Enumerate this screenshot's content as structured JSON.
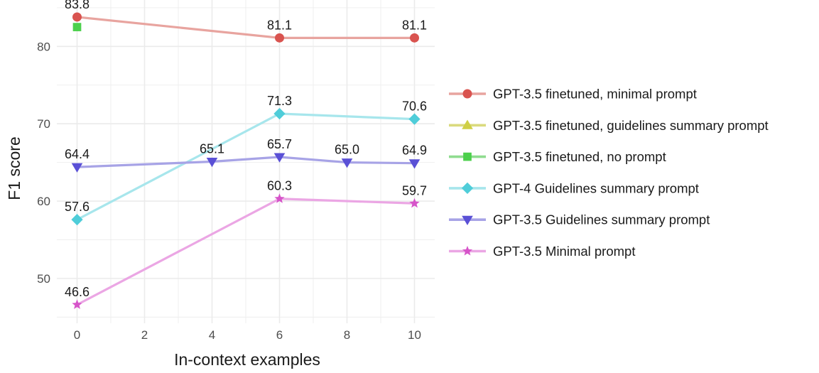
{
  "chart_data": {
    "type": "line",
    "title": "",
    "xlabel": "In-context examples",
    "ylabel": "F1 score",
    "xlim": [
      -0.6,
      10.6
    ],
    "ylim": [
      44.2,
      86
    ],
    "x_ticks": [
      0,
      2,
      4,
      6,
      8,
      10
    ],
    "y_ticks": [
      50,
      60,
      70,
      80
    ],
    "grid": true,
    "legend_position": "right",
    "series": [
      {
        "name": "GPT-3.5 finetuned, minimal prompt",
        "color": "#e8a49f",
        "marker_color": "#d9534f",
        "marker": "circle",
        "points": [
          {
            "x": 0,
            "y": 83.8,
            "label": "83.8"
          },
          {
            "x": 6,
            "y": 81.1,
            "label": "81.1"
          },
          {
            "x": 10,
            "y": 81.1,
            "label": "81.1"
          }
        ]
      },
      {
        "name": "GPT-3.5 finetuned, guidelines summary prompt",
        "color": "#dada7e",
        "marker_color": "#cfcf45",
        "marker": "triangle",
        "points": []
      },
      {
        "name": "GPT-3.5 finetuned, no prompt",
        "color": "#8fdc8f",
        "marker_color": "#4cd04c",
        "marker": "square",
        "points": [
          {
            "x": 0,
            "y": 82.5,
            "label": ""
          }
        ]
      },
      {
        "name": "GPT-4 Guidelines summary prompt",
        "color": "#a7e6ec",
        "marker_color": "#4fcdd9",
        "marker": "diamond",
        "points": [
          {
            "x": 0,
            "y": 57.6,
            "label": "57.6"
          },
          {
            "x": 6,
            "y": 71.3,
            "label": "71.3"
          },
          {
            "x": 10,
            "y": 70.6,
            "label": "70.6"
          }
        ]
      },
      {
        "name": "GPT-3.5 Guidelines summary prompt",
        "color": "#a7a3e6",
        "marker_color": "#5a50d6",
        "marker": "triangle-down",
        "points": [
          {
            "x": 0,
            "y": 64.4,
            "label": "64.4"
          },
          {
            "x": 4,
            "y": 65.1,
            "label": "65.1"
          },
          {
            "x": 6,
            "y": 65.7,
            "label": "65.7"
          },
          {
            "x": 8,
            "y": 65.0,
            "label": "65.0"
          },
          {
            "x": 10,
            "y": 64.9,
            "label": "64.9"
          }
        ]
      },
      {
        "name": "GPT-3.5 Minimal prompt",
        "color": "#eba6e4",
        "marker_color": "#d654c9",
        "marker": "star",
        "points": [
          {
            "x": 0,
            "y": 46.6,
            "label": "46.6"
          },
          {
            "x": 6,
            "y": 60.3,
            "label": "60.3"
          },
          {
            "x": 10,
            "y": 59.7,
            "label": "59.7"
          }
        ]
      }
    ]
  }
}
